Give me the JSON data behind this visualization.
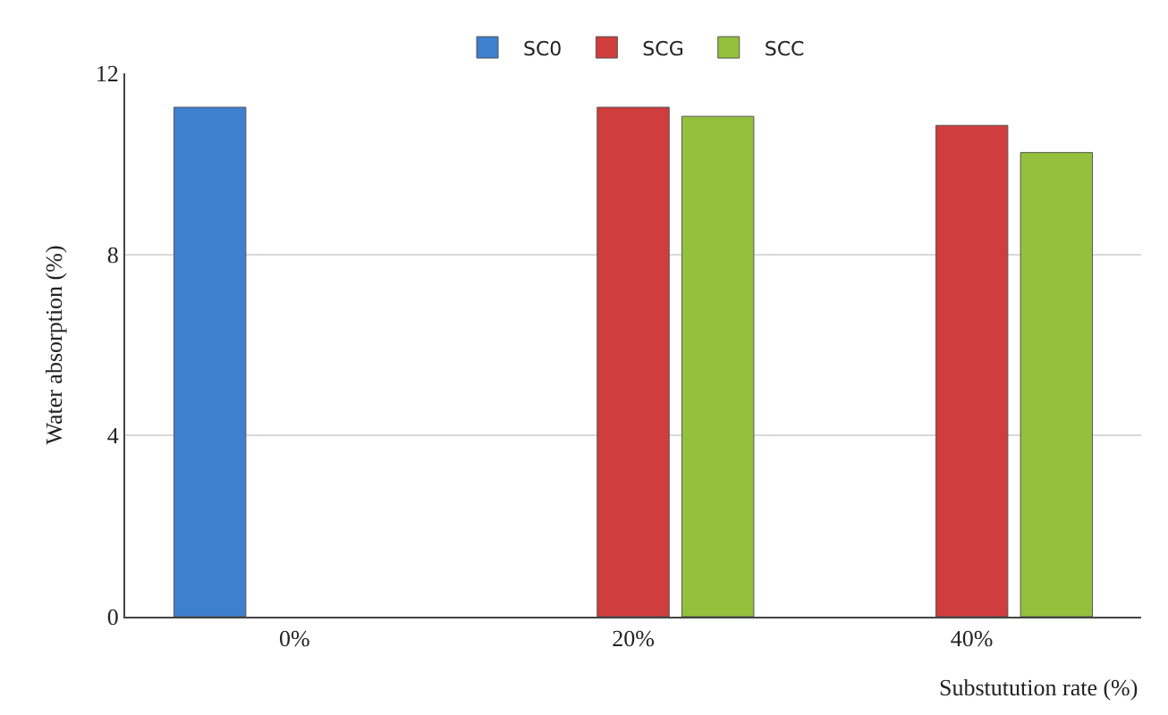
{
  "chart_data": {
    "type": "bar",
    "xlabel": "Substutution rate (%)",
    "ylabel": "Water absorption (%)",
    "categories": [
      "0%",
      "20%",
      "40%"
    ],
    "series": [
      {
        "name": "SC0",
        "color": "#3f7fcf",
        "values": [
          11.25,
          null,
          null
        ]
      },
      {
        "name": "SCG",
        "color": "#cf3d3d",
        "values": [
          null,
          11.25,
          10.85
        ]
      },
      {
        "name": "SCC",
        "color": "#93c13b",
        "values": [
          null,
          11.05,
          10.25
        ]
      }
    ],
    "ylim": [
      0,
      12
    ],
    "yticks": [
      0,
      4,
      8,
      12
    ],
    "grid": "y",
    "legend": "top"
  }
}
